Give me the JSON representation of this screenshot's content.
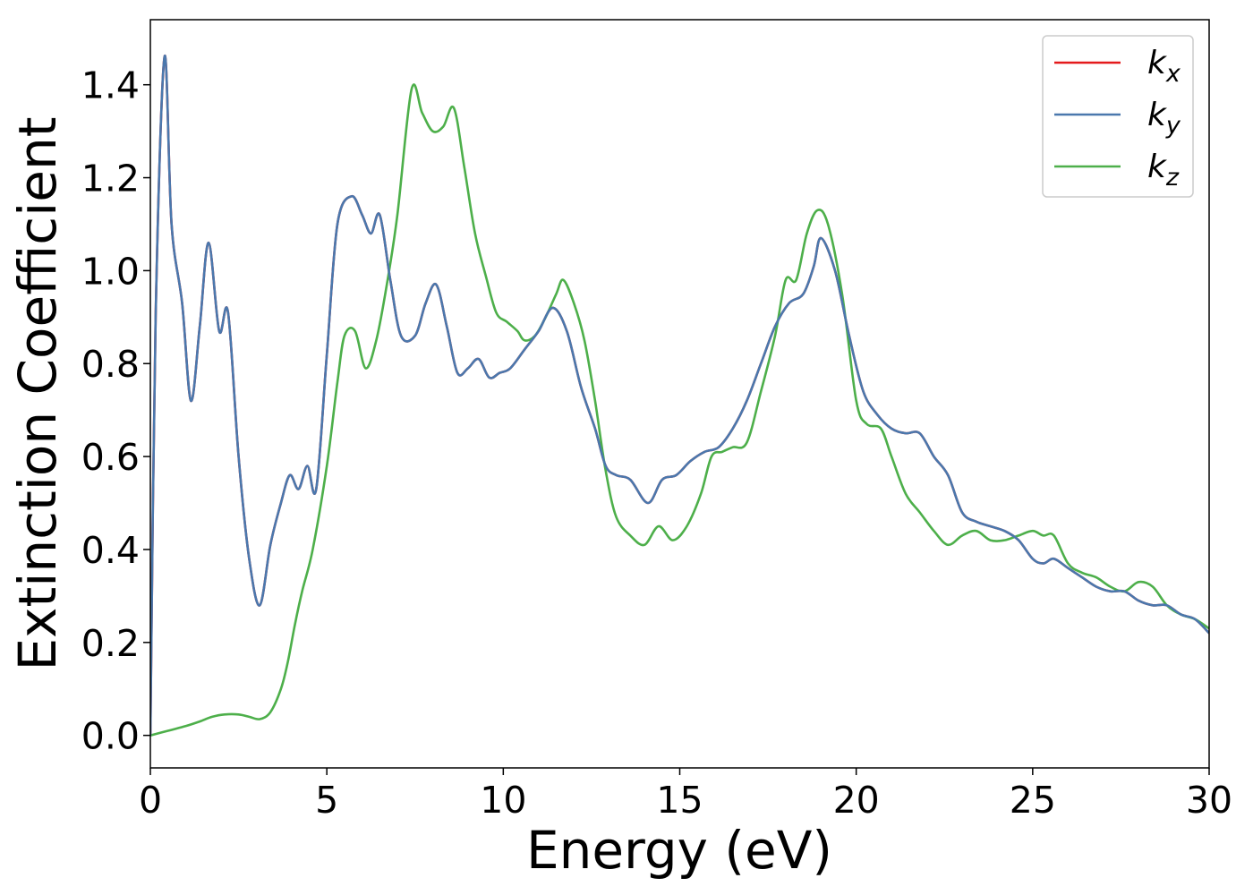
{
  "chart_data": {
    "type": "line",
    "xlabel": "Energy (eV)",
    "ylabel": "Extinction Coefficient",
    "xlim": [
      0,
      30
    ],
    "ylim": [
      -0.07,
      1.54
    ],
    "x_ticks": [
      "0",
      "5",
      "10",
      "15",
      "20",
      "25",
      "30"
    ],
    "y_ticks": [
      "0.0",
      "0.2",
      "0.4",
      "0.6",
      "0.8",
      "1.0",
      "1.2",
      "1.4"
    ],
    "grid": false,
    "legend_position": "top-right",
    "series": [
      {
        "name": "k",
        "subscript": "x",
        "color": "#e41a1c",
        "x": [
          0,
          0.15,
          0.4,
          0.6,
          0.9,
          1.15,
          1.4,
          1.65,
          1.95,
          2.2,
          2.5,
          2.8,
          3.1,
          3.4,
          3.7,
          3.95,
          4.2,
          4.45,
          4.7,
          5.0,
          5.3,
          5.7,
          6.0,
          6.25,
          6.5,
          6.8,
          7.1,
          7.5,
          7.8,
          8.1,
          8.4,
          8.7,
          9.0,
          9.3,
          9.6,
          9.9,
          10.2,
          10.6,
          11.0,
          11.4,
          11.8,
          12.2,
          12.6,
          12.9,
          13.2,
          13.6,
          14.1,
          14.5,
          14.9,
          15.3,
          15.7,
          16.1,
          16.5,
          16.9,
          17.3,
          17.7,
          18.1,
          18.5,
          18.8,
          19.0,
          19.4,
          19.8,
          20.2,
          20.6,
          21.0,
          21.4,
          21.8,
          22.2,
          22.6,
          23.0,
          23.4,
          23.8,
          24.2,
          24.6,
          25.0,
          25.3,
          25.6,
          26.0,
          26.4,
          26.8,
          27.2,
          27.6,
          28.0,
          28.4,
          28.8,
          29.2,
          29.6,
          30.0
        ],
        "y": [
          0.0,
          0.9,
          1.46,
          1.1,
          0.93,
          0.72,
          0.88,
          1.06,
          0.87,
          0.91,
          0.6,
          0.38,
          0.28,
          0.41,
          0.5,
          0.56,
          0.53,
          0.58,
          0.53,
          0.82,
          1.1,
          1.16,
          1.12,
          1.08,
          1.12,
          0.98,
          0.86,
          0.86,
          0.93,
          0.97,
          0.88,
          0.78,
          0.79,
          0.81,
          0.77,
          0.78,
          0.79,
          0.83,
          0.87,
          0.92,
          0.87,
          0.75,
          0.66,
          0.58,
          0.56,
          0.55,
          0.5,
          0.55,
          0.56,
          0.59,
          0.61,
          0.62,
          0.66,
          0.72,
          0.8,
          0.88,
          0.93,
          0.95,
          1.01,
          1.07,
          1.0,
          0.86,
          0.74,
          0.69,
          0.66,
          0.65,
          0.65,
          0.6,
          0.56,
          0.48,
          0.46,
          0.45,
          0.44,
          0.42,
          0.38,
          0.37,
          0.38,
          0.36,
          0.34,
          0.32,
          0.31,
          0.31,
          0.29,
          0.28,
          0.28,
          0.26,
          0.25,
          0.22
        ]
      },
      {
        "name": "k",
        "subscript": "y",
        "color": "#4a78ad",
        "x": [
          0,
          0.15,
          0.4,
          0.6,
          0.9,
          1.15,
          1.4,
          1.65,
          1.95,
          2.2,
          2.5,
          2.8,
          3.1,
          3.4,
          3.7,
          3.95,
          4.2,
          4.45,
          4.7,
          5.0,
          5.3,
          5.7,
          6.0,
          6.25,
          6.5,
          6.8,
          7.1,
          7.5,
          7.8,
          8.1,
          8.4,
          8.7,
          9.0,
          9.3,
          9.6,
          9.9,
          10.2,
          10.6,
          11.0,
          11.4,
          11.8,
          12.2,
          12.6,
          12.9,
          13.2,
          13.6,
          14.1,
          14.5,
          14.9,
          15.3,
          15.7,
          16.1,
          16.5,
          16.9,
          17.3,
          17.7,
          18.1,
          18.5,
          18.8,
          19.0,
          19.4,
          19.8,
          20.2,
          20.6,
          21.0,
          21.4,
          21.8,
          22.2,
          22.6,
          23.0,
          23.4,
          23.8,
          24.2,
          24.6,
          25.0,
          25.3,
          25.6,
          26.0,
          26.4,
          26.8,
          27.2,
          27.6,
          28.0,
          28.4,
          28.8,
          29.2,
          29.6,
          30.0
        ],
        "y": [
          0.0,
          0.9,
          1.46,
          1.1,
          0.93,
          0.72,
          0.88,
          1.06,
          0.87,
          0.91,
          0.6,
          0.38,
          0.28,
          0.41,
          0.5,
          0.56,
          0.53,
          0.58,
          0.53,
          0.82,
          1.1,
          1.16,
          1.12,
          1.08,
          1.12,
          0.98,
          0.86,
          0.86,
          0.93,
          0.97,
          0.88,
          0.78,
          0.79,
          0.81,
          0.77,
          0.78,
          0.79,
          0.83,
          0.87,
          0.92,
          0.87,
          0.75,
          0.66,
          0.58,
          0.56,
          0.55,
          0.5,
          0.55,
          0.56,
          0.59,
          0.61,
          0.62,
          0.66,
          0.72,
          0.8,
          0.88,
          0.93,
          0.95,
          1.01,
          1.07,
          1.0,
          0.86,
          0.74,
          0.69,
          0.66,
          0.65,
          0.65,
          0.6,
          0.56,
          0.48,
          0.46,
          0.45,
          0.44,
          0.42,
          0.38,
          0.37,
          0.38,
          0.36,
          0.34,
          0.32,
          0.31,
          0.31,
          0.29,
          0.28,
          0.28,
          0.26,
          0.25,
          0.22
        ]
      },
      {
        "name": "k",
        "subscript": "z",
        "color": "#4daf4a",
        "x": [
          0,
          0.5,
          1.0,
          1.4,
          1.75,
          2.1,
          2.5,
          2.8,
          3.1,
          3.4,
          3.7,
          3.9,
          4.1,
          4.3,
          4.6,
          5.0,
          5.3,
          5.5,
          5.8,
          6.1,
          6.4,
          6.7,
          7.0,
          7.4,
          7.7,
          8.0,
          8.3,
          8.6,
          8.9,
          9.2,
          9.5,
          9.8,
          10.1,
          10.4,
          10.6,
          10.9,
          11.2,
          11.5,
          11.7,
          12.0,
          12.3,
          12.6,
          12.9,
          13.2,
          13.6,
          14.0,
          14.4,
          14.8,
          15.2,
          15.6,
          15.9,
          16.2,
          16.5,
          16.9,
          17.3,
          17.7,
          18.0,
          18.3,
          18.6,
          18.9,
          19.2,
          19.6,
          20.0,
          20.3,
          20.7,
          21.0,
          21.4,
          21.8,
          22.2,
          22.6,
          23.0,
          23.4,
          23.8,
          24.2,
          24.6,
          25.0,
          25.3,
          25.6,
          26.0,
          26.4,
          26.8,
          27.2,
          27.6,
          28.0,
          28.4,
          28.8,
          29.2,
          29.6,
          30.0
        ],
        "y": [
          0.0,
          0.01,
          0.02,
          0.03,
          0.04,
          0.045,
          0.045,
          0.04,
          0.035,
          0.05,
          0.1,
          0.16,
          0.24,
          0.31,
          0.4,
          0.58,
          0.76,
          0.86,
          0.87,
          0.79,
          0.85,
          0.97,
          1.12,
          1.39,
          1.34,
          1.3,
          1.31,
          1.35,
          1.22,
          1.08,
          0.99,
          0.91,
          0.89,
          0.87,
          0.85,
          0.86,
          0.9,
          0.95,
          0.98,
          0.93,
          0.85,
          0.72,
          0.57,
          0.47,
          0.43,
          0.41,
          0.45,
          0.42,
          0.45,
          0.52,
          0.6,
          0.61,
          0.62,
          0.63,
          0.74,
          0.86,
          0.98,
          0.98,
          1.08,
          1.13,
          1.1,
          0.95,
          0.72,
          0.67,
          0.66,
          0.6,
          0.52,
          0.48,
          0.44,
          0.41,
          0.43,
          0.44,
          0.42,
          0.42,
          0.43,
          0.44,
          0.43,
          0.43,
          0.37,
          0.35,
          0.34,
          0.32,
          0.31,
          0.33,
          0.32,
          0.28,
          0.26,
          0.25,
          0.23
        ]
      }
    ]
  }
}
